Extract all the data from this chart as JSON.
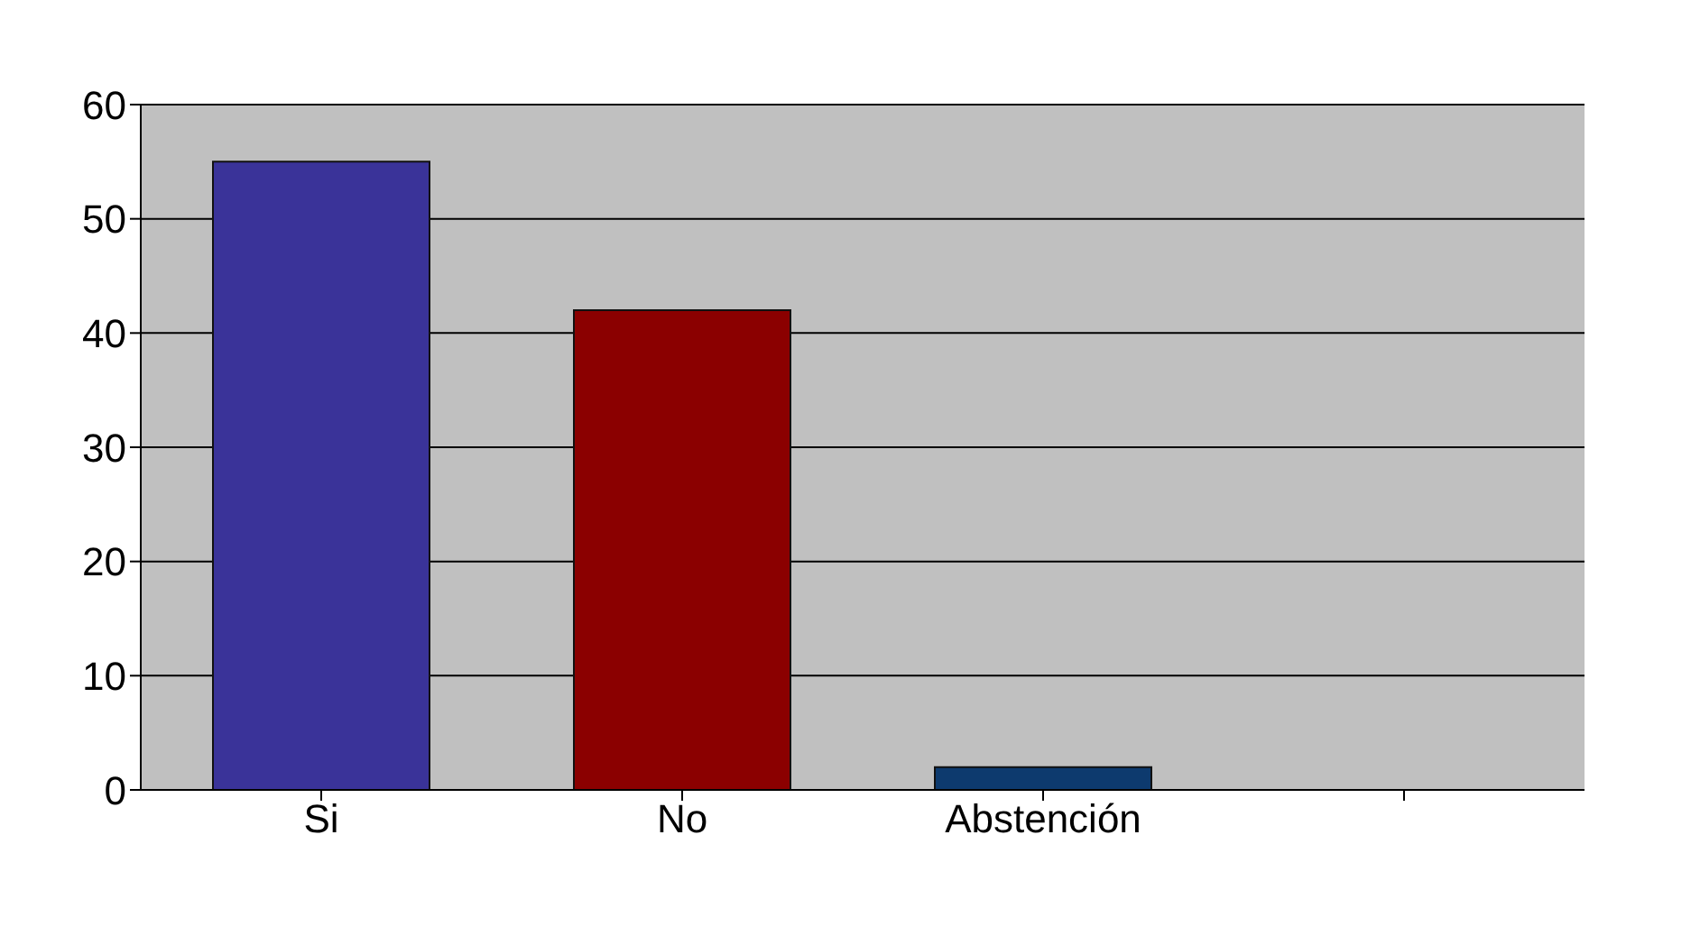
{
  "chart_data": {
    "type": "bar",
    "categories": [
      "Si",
      "No",
      "Abstención",
      null
    ],
    "values": [
      55,
      42,
      2,
      null
    ],
    "colors": [
      "#3a3399",
      "#8b0000",
      "#0d3a6e",
      "#808080"
    ],
    "ylim": [
      0,
      60
    ],
    "yticks": [
      0,
      10,
      20,
      30,
      40,
      50,
      60
    ],
    "grid": "y"
  }
}
